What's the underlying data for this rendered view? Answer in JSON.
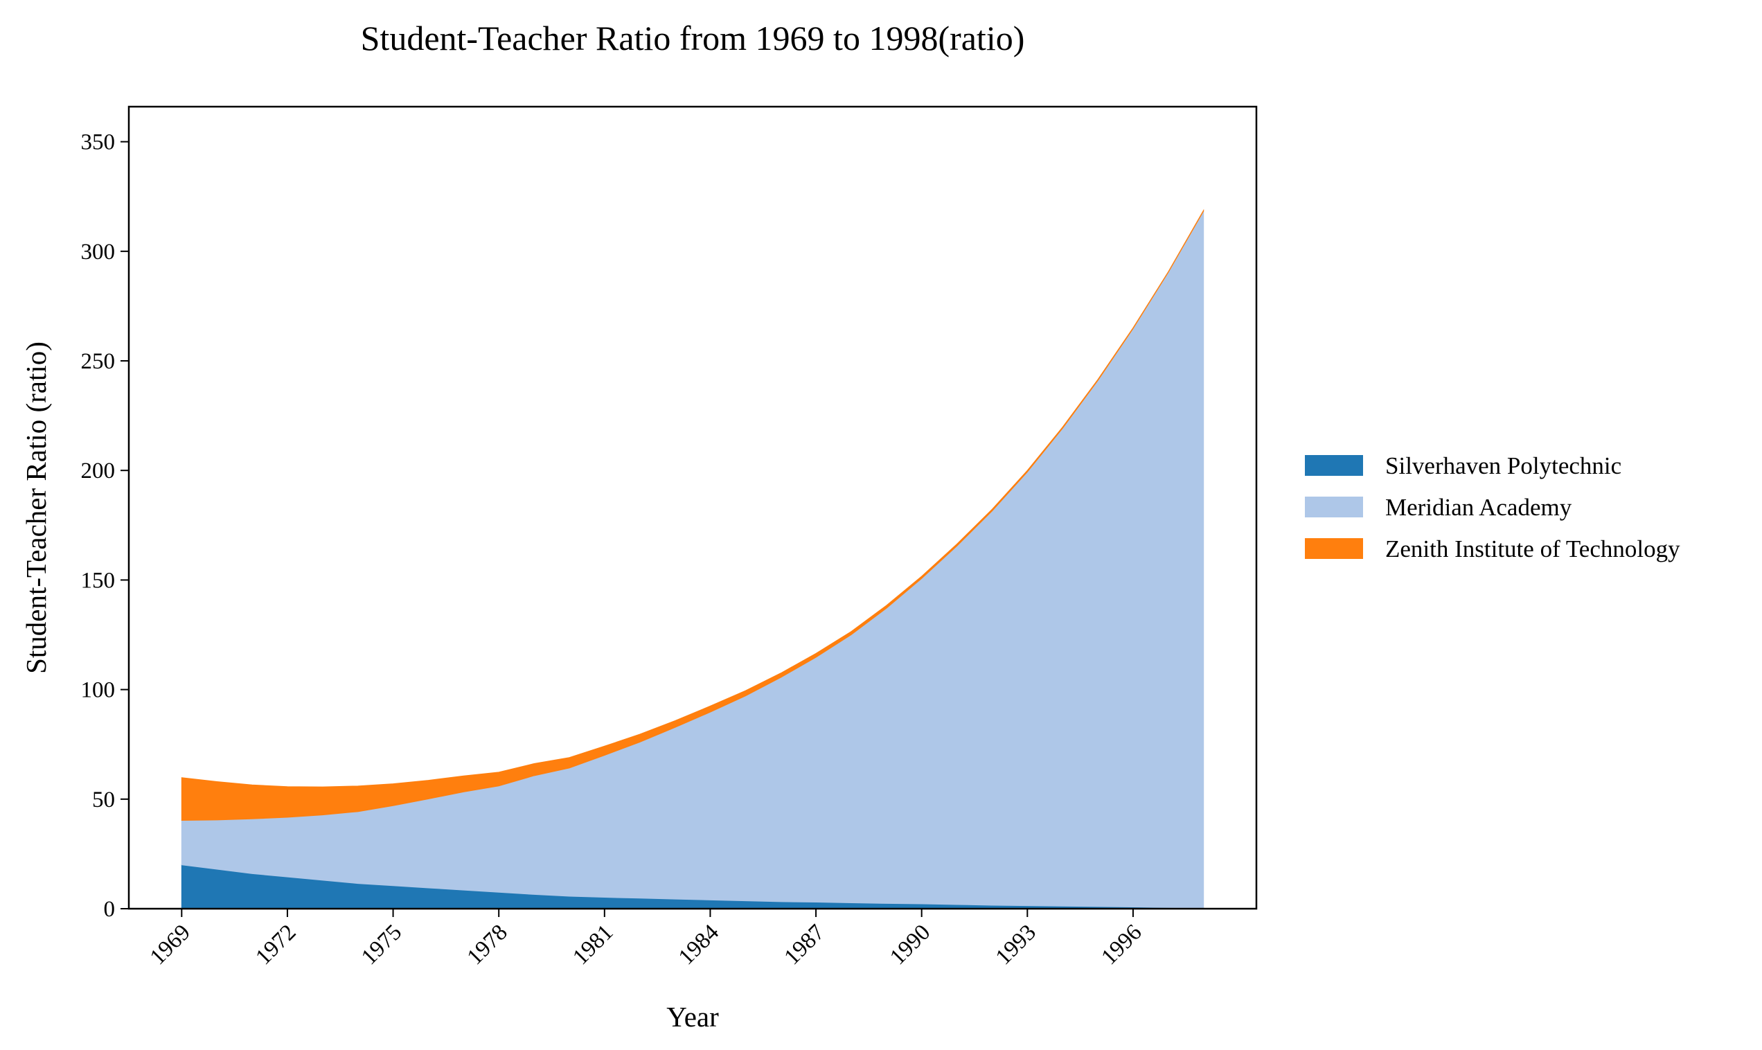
{
  "chart_data": {
    "type": "area",
    "stacked": true,
    "title": "Student-Teacher Ratio from 1969 to 1998(ratio)",
    "xlabel": "Year",
    "ylabel": "Student-Teacher Ratio (ratio)",
    "x": [
      1969,
      1970,
      1971,
      1972,
      1973,
      1974,
      1975,
      1976,
      1977,
      1978,
      1979,
      1980,
      1981,
      1982,
      1983,
      1984,
      1985,
      1986,
      1987,
      1988,
      1989,
      1990,
      1991,
      1992,
      1993,
      1994,
      1995,
      1996,
      1997,
      1998
    ],
    "xticks": [
      "1969",
      "1972",
      "1975",
      "1978",
      "1981",
      "1984",
      "1987",
      "1990",
      "1993",
      "1996"
    ],
    "xlim": [
      1967.5,
      1999.5
    ],
    "ylim": [
      0,
      366
    ],
    "yticks": [
      "0",
      "50",
      "100",
      "150",
      "200",
      "250",
      "300",
      "350"
    ],
    "grid": false,
    "legend_position": "right",
    "series": [
      {
        "name": "Silverhaven Polytechnic",
        "color": "#1f77b4",
        "values": [
          20,
          18,
          16,
          14.5,
          13,
          11.5,
          10.5,
          9.5,
          8.5,
          7.5,
          6.5,
          5.7,
          5.2,
          4.8,
          4.4,
          4.0,
          3.6,
          3.2,
          3.0,
          2.7,
          2.4,
          2.2,
          1.9,
          1.6,
          1.4,
          1.2,
          1.0,
          0.8,
          0.5,
          0.3
        ]
      },
      {
        "name": "Meridian Academy",
        "color": "#aec7e8",
        "values": [
          20.3,
          22.5,
          25.0,
          27.2,
          29.8,
          32.8,
          36.5,
          40.6,
          44.8,
          48.5,
          54.2,
          58.5,
          64.8,
          71.2,
          78.3,
          85.7,
          93.5,
          102.3,
          111.7,
          122.3,
          134.7,
          148.5,
          163.6,
          179.9,
          197.9,
          218.0,
          240.0,
          263.9,
          289.9,
          318.0
        ]
      },
      {
        "name": "Zenith Institute of Technology",
        "color": "#ff7f0e",
        "values": [
          19.5,
          17.5,
          15.5,
          14.0,
          12.8,
          11.7,
          10.0,
          8.5,
          7.3,
          6.3,
          5.5,
          4.8,
          4.2,
          3.6,
          3.1,
          2.8,
          2.4,
          2.0,
          1.8,
          1.5,
          1.3,
          1.0,
          0.9,
          0.8,
          0.7,
          0.6,
          0.5,
          0.4,
          0.3,
          0.4
        ]
      }
    ]
  }
}
